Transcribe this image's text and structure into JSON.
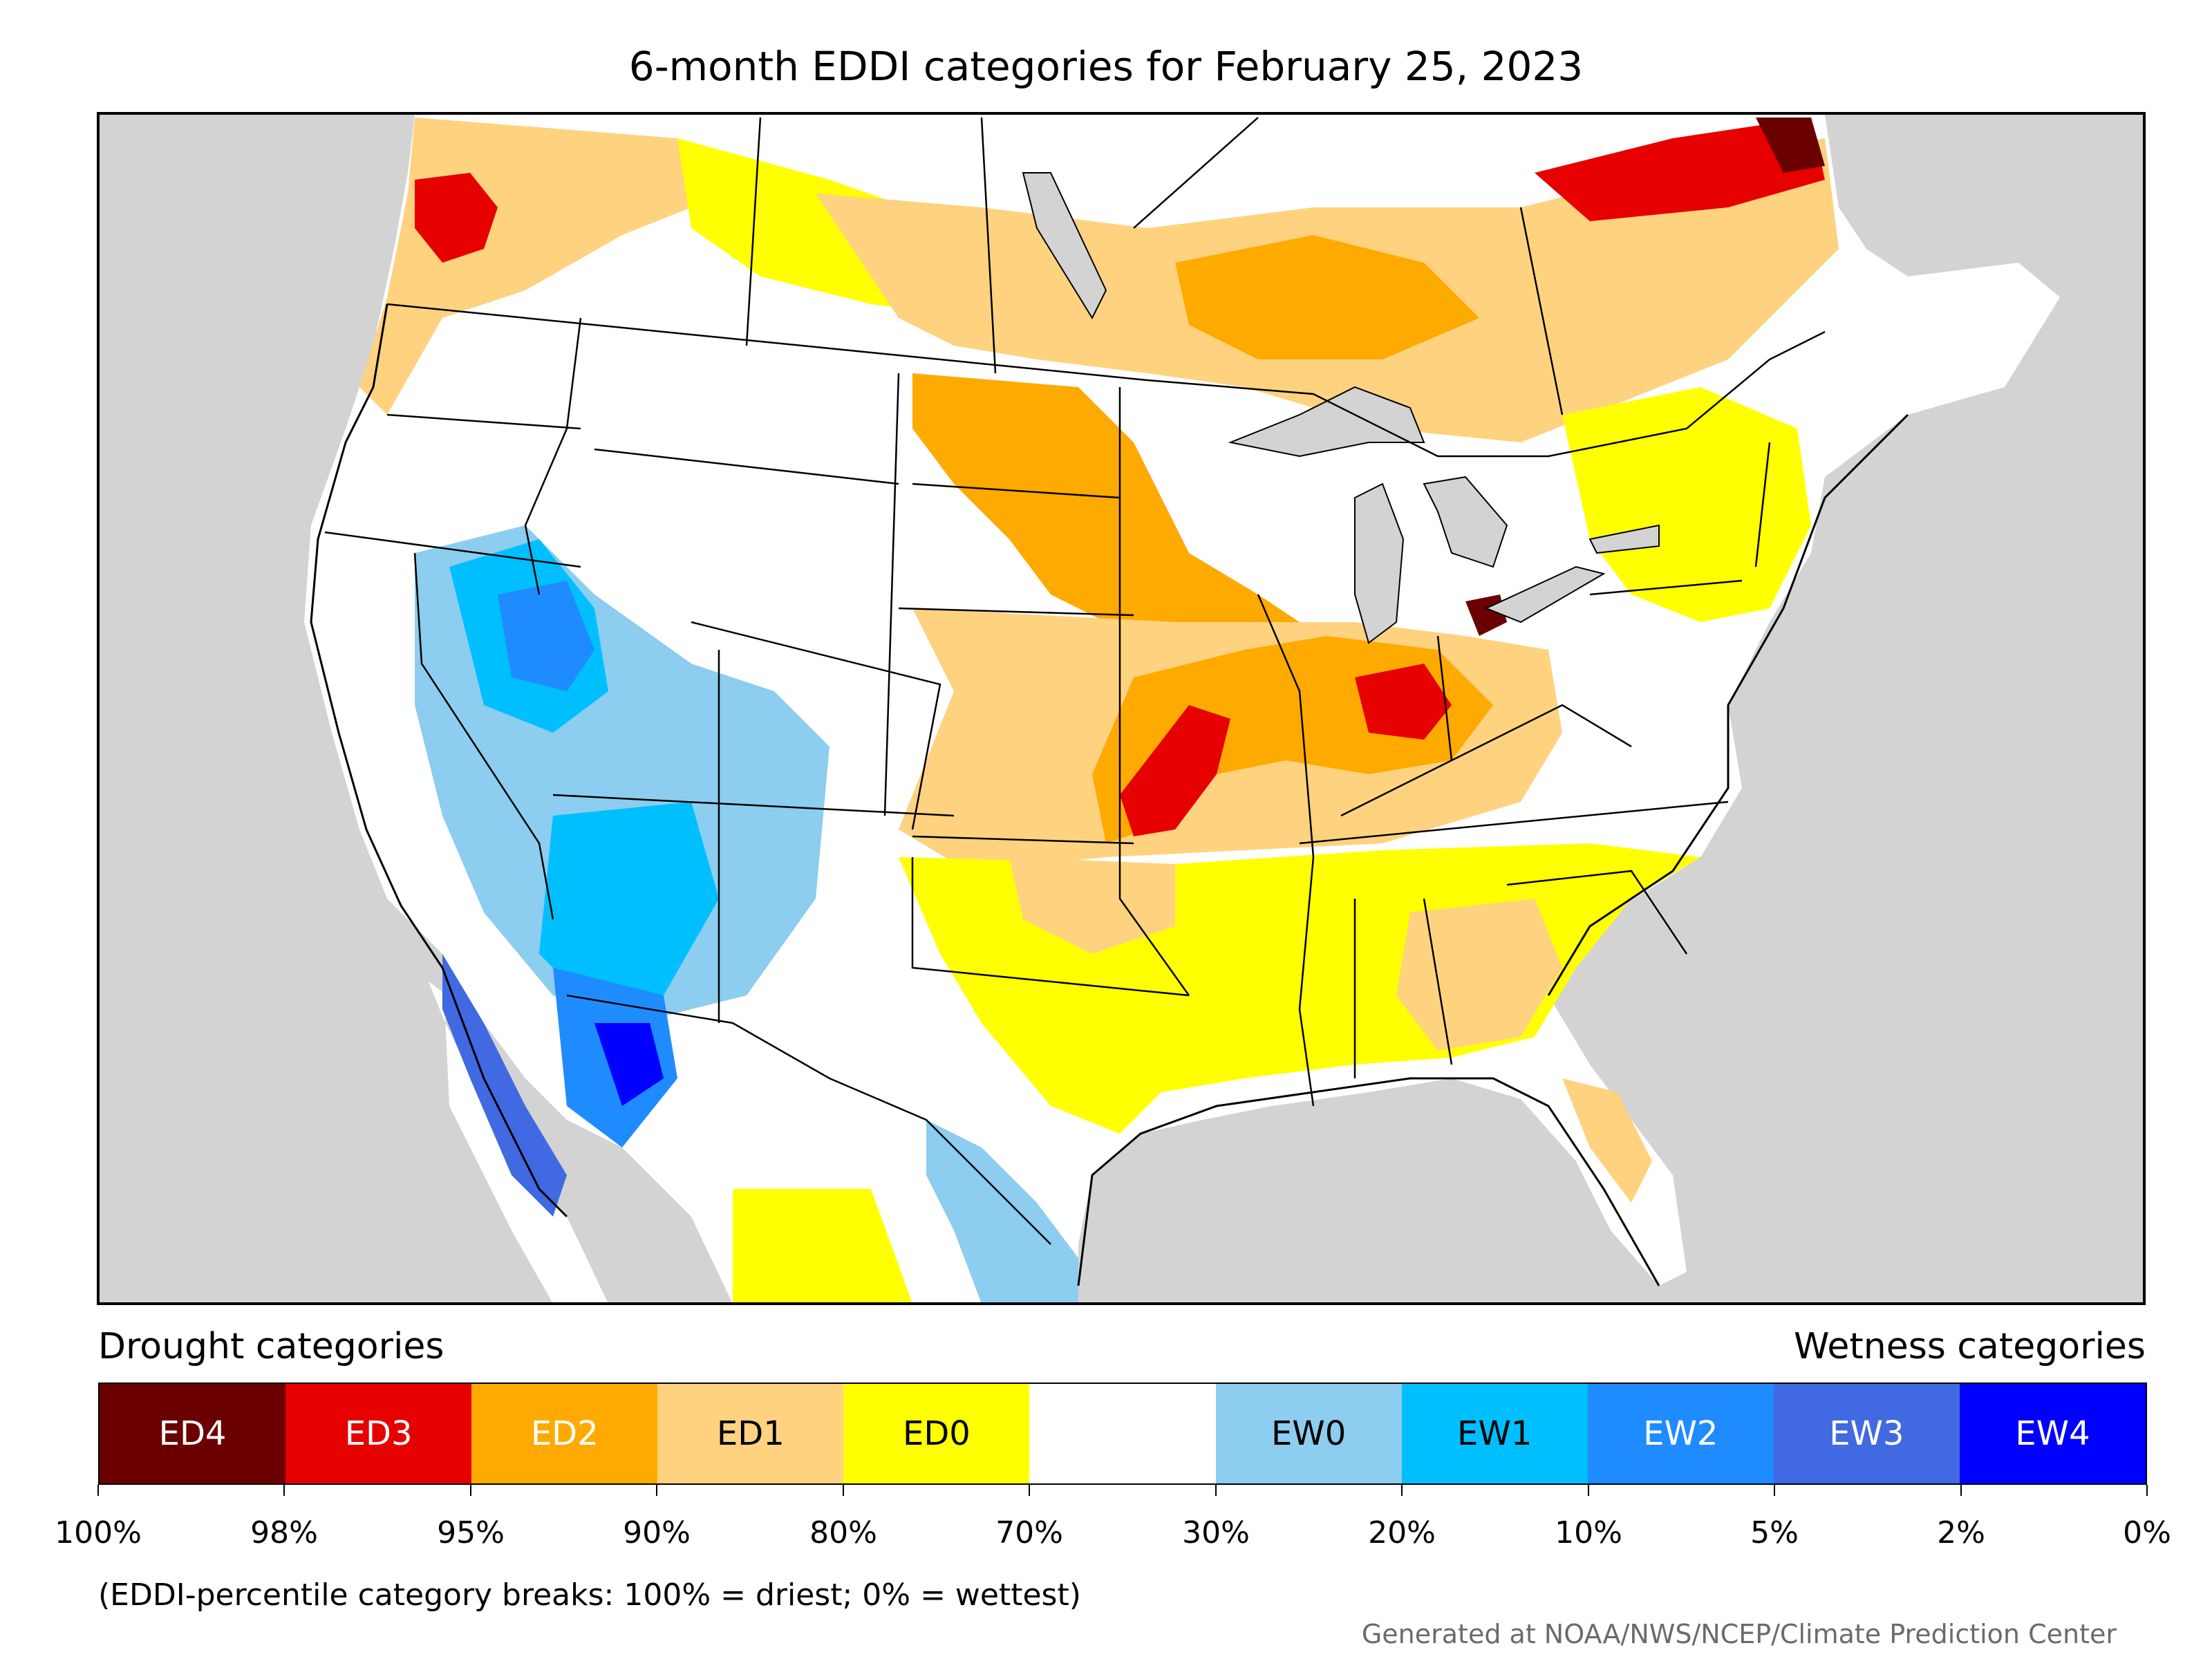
{
  "title": "6-month EDDI categories for February 25, 2023",
  "colors": {
    "ED4": "#6b0000",
    "ED3": "#e60000",
    "ED2": "#ffaa00",
    "ED1": "#ffd280",
    "ED0": "#ffff00",
    "normal": "#ffffff",
    "EW0": "#8ccdf0",
    "EW1": "#00bfff",
    "EW2": "#1e8cff",
    "EW3": "#4169e1",
    "EW4": "#0000ff",
    "outside": "#d3d3d3",
    "borders": "#000000"
  },
  "legend": {
    "drought_heading": "Drought categories",
    "wetness_heading": "Wetness categories",
    "categories": [
      {
        "label": "ED4",
        "color": "#6b0000",
        "text_color": "#ffffff"
      },
      {
        "label": "ED3",
        "color": "#e60000",
        "text_color": "#ffffff"
      },
      {
        "label": "ED2",
        "color": "#ffaa00",
        "text_color": "#ffffff"
      },
      {
        "label": "ED1",
        "color": "#ffd280",
        "text_color": "#000000"
      },
      {
        "label": "ED0",
        "color": "#ffff00",
        "text_color": "#000000"
      },
      {
        "label": "",
        "color": "#ffffff",
        "text_color": "#000000"
      },
      {
        "label": "EW0",
        "color": "#8ccdf0",
        "text_color": "#000000"
      },
      {
        "label": "EW1",
        "color": "#00bfff",
        "text_color": "#000000"
      },
      {
        "label": "EW2",
        "color": "#1e8cff",
        "text_color": "#ffffff"
      },
      {
        "label": "EW3",
        "color": "#4169e1",
        "text_color": "#ffffff"
      },
      {
        "label": "EW4",
        "color": "#0000ff",
        "text_color": "#ffffff"
      }
    ],
    "tick_labels": [
      "100%",
      "98%",
      "95%",
      "90%",
      "80%",
      "70%",
      "30%",
      "20%",
      "10%",
      "5%",
      "2%",
      "0%"
    ]
  },
  "footnote": "(EDDI-percentile category breaks: 100% = driest; 0% = wettest)",
  "credit": "Generated at NOAA/NWS/NCEP/Climate Prediction Center"
}
